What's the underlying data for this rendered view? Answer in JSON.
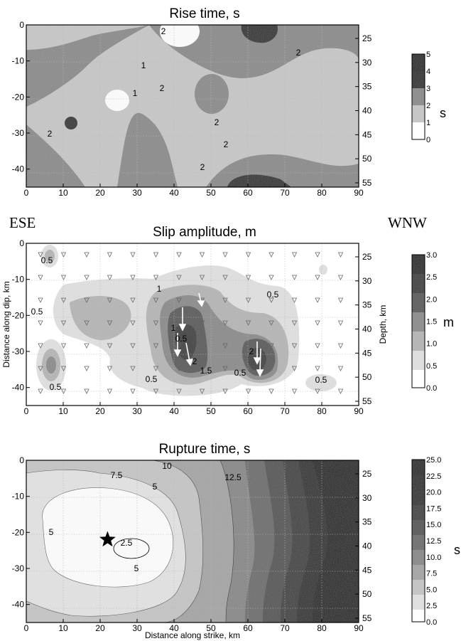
{
  "panels": [
    {
      "title": "Rise time, s",
      "colorbar": {
        "unit": "s",
        "ticks": [
          "0",
          "1",
          "2",
          "3",
          "4",
          "5"
        ]
      },
      "contour_labels": [
        "1",
        "1",
        "2",
        "2",
        "2",
        "2",
        "2",
        "2",
        "2"
      ]
    },
    {
      "title": "Slip amplitude, m",
      "left_label": "ESE",
      "right_label": "WNW",
      "ylabel": "Distance along dip, km",
      "ylabel_right": "Depth, km",
      "colorbar": {
        "unit": "m",
        "ticks": [
          "0.0",
          "0.5",
          "1.0",
          "1.5",
          "2.0",
          "2.5",
          "3.0"
        ]
      },
      "contour_labels": [
        "0.5",
        "0.5",
        "0.5",
        "0.5",
        "0.5",
        "0.5",
        "0.5",
        "1",
        "1",
        "1.5",
        "2",
        "2",
        "0.5"
      ]
    },
    {
      "title": "Rupture time, s",
      "xlabel": "Distance along strike, km",
      "colorbar": {
        "unit": "s",
        "ticks": [
          "0.0",
          "2.5",
          "5.0",
          "7.5",
          "10.0",
          "12.5",
          "15.0",
          "17.5",
          "20.0",
          "22.5",
          "25.0"
        ]
      },
      "contour_labels": [
        "2.5",
        "5",
        "5",
        "5",
        "7.5",
        "10",
        "12.5"
      ]
    }
  ],
  "chart_data": [
    {
      "type": "heatmap",
      "title": "Rise time, s",
      "xlim": [
        0,
        90
      ],
      "ylim": [
        -45,
        0
      ],
      "x_ticks": [
        "0",
        "10",
        "20",
        "30",
        "40",
        "50",
        "60",
        "70",
        "80",
        "90"
      ],
      "y_ticks": [
        "0",
        "-10",
        "-20",
        "-30",
        "-40"
      ],
      "depth_ticks": [
        "25",
        "30",
        "35",
        "40",
        "45",
        "50",
        "55"
      ],
      "colorbar_levels": [
        0,
        1,
        2,
        3,
        4,
        5
      ],
      "features": [
        {
          "x": 11,
          "y": -26,
          "value": 4
        },
        {
          "x": 65,
          "y": -2,
          "value": 4
        },
        {
          "x": 25,
          "y": -20,
          "value": 0.8
        },
        {
          "x": 48,
          "y": -22,
          "value": 2.5
        }
      ]
    },
    {
      "type": "heatmap",
      "title": "Slip amplitude, m",
      "xlim": [
        0,
        90
      ],
      "ylim": [
        -45,
        0
      ],
      "x_ticks": [
        "0",
        "10",
        "20",
        "30",
        "40",
        "50",
        "60",
        "70",
        "80",
        "90"
      ],
      "y_ticks": [
        "0",
        "-10",
        "-20",
        "-30",
        "-40"
      ],
      "depth_ticks": [
        "25",
        "30",
        "35",
        "40",
        "45",
        "50",
        "55"
      ],
      "colorbar_levels": [
        0,
        0.5,
        1,
        1.5,
        2,
        2.5,
        3
      ],
      "features": [
        {
          "x": 42,
          "y": -30,
          "value": 2.6
        },
        {
          "x": 63,
          "y": -33,
          "value": 2.4
        },
        {
          "x": 4,
          "y": -34,
          "value": 1.5
        },
        {
          "x": 18,
          "y": -20,
          "value": 1.1
        }
      ]
    },
    {
      "type": "heatmap",
      "title": "Rupture time, s",
      "xlim": [
        0,
        90
      ],
      "ylim": [
        -45,
        0
      ],
      "x_ticks": [
        "0",
        "10",
        "20",
        "30",
        "40",
        "50",
        "60",
        "70",
        "80",
        "90"
      ],
      "y_ticks": [
        "0",
        "-10",
        "-20",
        "-30",
        "-40"
      ],
      "depth_ticks": [
        "25",
        "30",
        "35",
        "40",
        "45",
        "50",
        "55"
      ],
      "xlabel": "Distance along strike, km",
      "colorbar_levels": [
        0,
        2.5,
        5,
        7.5,
        10,
        12.5,
        15,
        17.5,
        20,
        22.5,
        25
      ],
      "hypocenter": {
        "x": 22,
        "y": -22
      }
    }
  ]
}
